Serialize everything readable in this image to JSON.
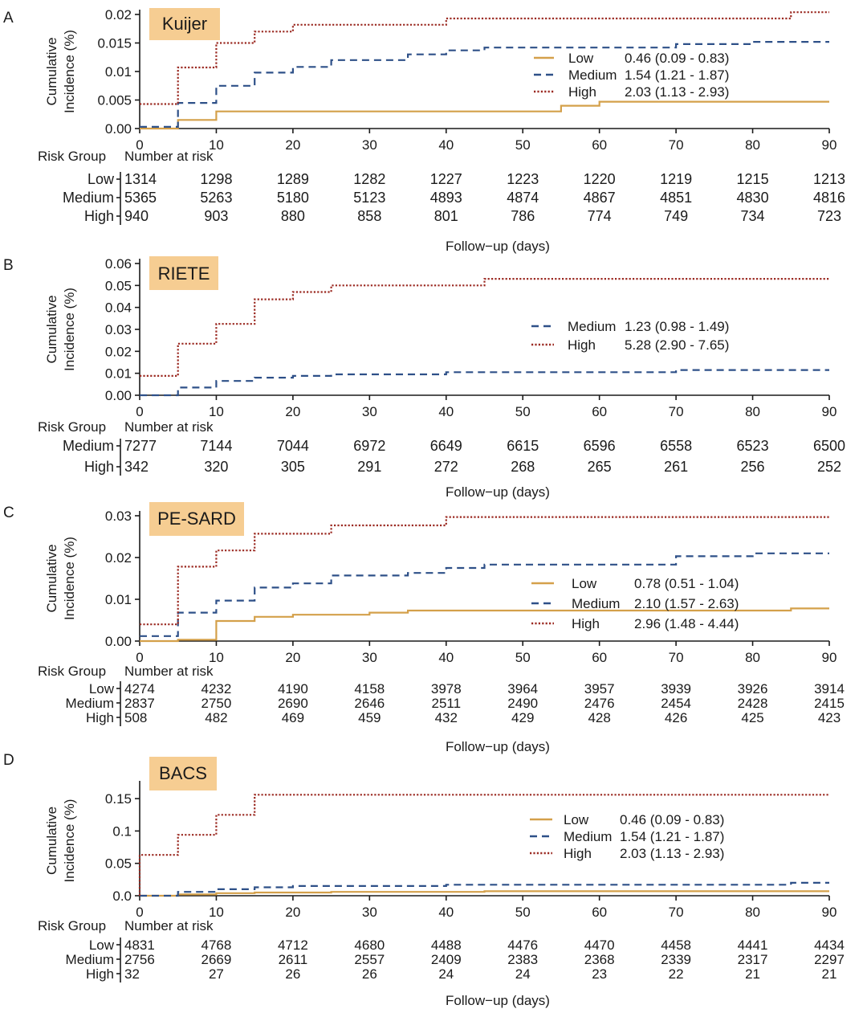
{
  "x_label": "Follow−up (days)",
  "risk_header": "Risk Group",
  "risk_subheader": "Number at risk",
  "colors": {
    "Low": "#d4a04a",
    "Medium": "#2e5088",
    "High": "#9b2a22"
  },
  "line_styles": {
    "Low": "solid",
    "Medium": "dashed",
    "High": "dotted"
  },
  "chart_data": [
    {
      "panel_letter": "A",
      "title": "Kuijer",
      "type": "line",
      "step": true,
      "x_ticks": [
        0,
        10,
        20,
        30,
        40,
        50,
        60,
        70,
        80,
        90
      ],
      "xlim": [
        0,
        90
      ],
      "ylim": [
        0,
        0.02
      ],
      "y_ticks": [
        "0.00",
        "0.005",
        "0.01",
        "0.015",
        "0.02"
      ],
      "y_tick_values": [
        0,
        0.005,
        0.01,
        0.015,
        0.02
      ],
      "ylabel": [
        "Cumulative",
        "Incidence (%)"
      ],
      "series": [
        {
          "name": "Low",
          "hr": "0.46 (0.09 - 0.83)",
          "points": [
            [
              0,
              0
            ],
            [
              5,
              0
            ],
            [
              5,
              0.0015
            ],
            [
              10,
              0.0015
            ],
            [
              10,
              0.003
            ],
            [
              55,
              0.003
            ],
            [
              55,
              0.004
            ],
            [
              60,
              0.004
            ],
            [
              60,
              0.0047
            ],
            [
              90,
              0.0047
            ]
          ]
        },
        {
          "name": "Medium",
          "hr": "1.54 (1.21 - 1.87)",
          "points": [
            [
              0,
              0.0003
            ],
            [
              5,
              0.0003
            ],
            [
              5,
              0.0045
            ],
            [
              10,
              0.0045
            ],
            [
              10,
              0.0075
            ],
            [
              15,
              0.0075
            ],
            [
              15,
              0.0098
            ],
            [
              20,
              0.0098
            ],
            [
              20,
              0.0108
            ],
            [
              25,
              0.0108
            ],
            [
              25,
              0.012
            ],
            [
              35,
              0.012
            ],
            [
              35,
              0.013
            ],
            [
              40,
              0.013
            ],
            [
              40,
              0.0137
            ],
            [
              45,
              0.0137
            ],
            [
              45,
              0.0142
            ],
            [
              70,
              0.0142
            ],
            [
              70,
              0.0148
            ],
            [
              80,
              0.0148
            ],
            [
              80,
              0.0152
            ],
            [
              90,
              0.0152
            ]
          ]
        },
        {
          "name": "High",
          "hr": "2.03 (1.13 - 2.93)",
          "points": [
            [
              0,
              0.0043
            ],
            [
              5,
              0.0043
            ],
            [
              5,
              0.0107
            ],
            [
              10,
              0.0107
            ],
            [
              10,
              0.015
            ],
            [
              15,
              0.015
            ],
            [
              15,
              0.017
            ],
            [
              20,
              0.017
            ],
            [
              20,
              0.0182
            ],
            [
              40,
              0.0182
            ],
            [
              40,
              0.0193
            ],
            [
              85,
              0.0193
            ],
            [
              85,
              0.0204
            ],
            [
              90,
              0.0204
            ]
          ]
        }
      ],
      "risk_table": {
        "Low": [
          "1314",
          "1298",
          "1289",
          "1282",
          "1227",
          "1223",
          "1220",
          "1219",
          "1215",
          "1213"
        ],
        "Medium": [
          "5365",
          "5263",
          "5180",
          "5123",
          "4893",
          "4874",
          "4867",
          "4851",
          "4830",
          "4816"
        ],
        "High": [
          "940",
          "903",
          "880",
          "858",
          "801",
          "786",
          "774",
          "749",
          "734",
          "723"
        ]
      }
    },
    {
      "panel_letter": "B",
      "title": "RIETE",
      "type": "line",
      "step": true,
      "x_ticks": [
        0,
        10,
        20,
        30,
        40,
        50,
        60,
        70,
        80,
        90
      ],
      "xlim": [
        0,
        90
      ],
      "ylim": [
        0,
        0.06
      ],
      "y_ticks": [
        "0.00",
        "0.01",
        "0.02",
        "0.03",
        "0.04",
        "0.05",
        "0.06"
      ],
      "y_tick_values": [
        0,
        0.01,
        0.02,
        0.03,
        0.04,
        0.05,
        0.06
      ],
      "ylabel": [
        "Cumulative",
        "Incidence (%)"
      ],
      "series": [
        {
          "name": "Medium",
          "hr": "1.23 (0.98 - 1.49)",
          "points": [
            [
              0,
              0
            ],
            [
              5,
              0
            ],
            [
              5,
              0.0035
            ],
            [
              10,
              0.0035
            ],
            [
              10,
              0.0065
            ],
            [
              15,
              0.0065
            ],
            [
              15,
              0.008
            ],
            [
              20,
              0.008
            ],
            [
              20,
              0.0088
            ],
            [
              25,
              0.0088
            ],
            [
              25,
              0.0095
            ],
            [
              40,
              0.0095
            ],
            [
              40,
              0.0105
            ],
            [
              70,
              0.0105
            ],
            [
              70,
              0.0115
            ],
            [
              90,
              0.0115
            ]
          ]
        },
        {
          "name": "High",
          "hr": "5.28 (2.90 - 7.65)",
          "points": [
            [
              0,
              0.0088
            ],
            [
              5,
              0.0088
            ],
            [
              5,
              0.0235
            ],
            [
              10,
              0.0235
            ],
            [
              10,
              0.0325
            ],
            [
              15,
              0.0325
            ],
            [
              15,
              0.0437
            ],
            [
              20,
              0.0437
            ],
            [
              20,
              0.047
            ],
            [
              25,
              0.047
            ],
            [
              25,
              0.05
            ],
            [
              45,
              0.05
            ],
            [
              45,
              0.053
            ],
            [
              90,
              0.053
            ]
          ]
        }
      ],
      "risk_table": {
        "Medium": [
          "7277",
          "7144",
          "7044",
          "6972",
          "6649",
          "6615",
          "6596",
          "6558",
          "6523",
          "6500"
        ],
        "High": [
          "342",
          "320",
          "305",
          "291",
          "272",
          "268",
          "265",
          "261",
          "256",
          "252"
        ]
      }
    },
    {
      "panel_letter": "C",
      "title": "PE-SARD",
      "type": "line",
      "step": true,
      "x_ticks": [
        0,
        10,
        20,
        30,
        40,
        50,
        60,
        70,
        80,
        90
      ],
      "xlim": [
        0,
        90
      ],
      "ylim": [
        0,
        0.03
      ],
      "y_ticks": [
        "0.00",
        "0.01",
        "0.02",
        "0.03"
      ],
      "y_tick_values": [
        0,
        0.01,
        0.02,
        0.03
      ],
      "ylabel": [
        "Cumulative",
        "Incidence (%)"
      ],
      "series": [
        {
          "name": "Low",
          "hr": "0.78 (0.51 - 1.04)",
          "points": [
            [
              0,
              0
            ],
            [
              5,
              0
            ],
            [
              5,
              0.0003
            ],
            [
              10,
              0.0003
            ],
            [
              10,
              0.0048
            ],
            [
              15,
              0.0048
            ],
            [
              15,
              0.0058
            ],
            [
              20,
              0.0058
            ],
            [
              20,
              0.0063
            ],
            [
              30,
              0.0063
            ],
            [
              30,
              0.0068
            ],
            [
              35,
              0.0068
            ],
            [
              35,
              0.0073
            ],
            [
              85,
              0.0073
            ],
            [
              85,
              0.0078
            ],
            [
              90,
              0.0078
            ]
          ]
        },
        {
          "name": "Medium",
          "hr": "2.10 (1.57 - 2.63)",
          "points": [
            [
              0,
              0.0012
            ],
            [
              5,
              0.0012
            ],
            [
              5,
              0.0068
            ],
            [
              10,
              0.0068
            ],
            [
              10,
              0.0097
            ],
            [
              15,
              0.0097
            ],
            [
              15,
              0.0128
            ],
            [
              20,
              0.0128
            ],
            [
              20,
              0.0138
            ],
            [
              25,
              0.0138
            ],
            [
              25,
              0.0157
            ],
            [
              35,
              0.0157
            ],
            [
              35,
              0.0163
            ],
            [
              40,
              0.0163
            ],
            [
              40,
              0.0175
            ],
            [
              45,
              0.0175
            ],
            [
              45,
              0.0183
            ],
            [
              70,
              0.0183
            ],
            [
              70,
              0.0203
            ],
            [
              80,
              0.0203
            ],
            [
              80,
              0.021
            ],
            [
              90,
              0.021
            ]
          ]
        },
        {
          "name": "High",
          "hr": "2.96 (1.48 - 4.44)",
          "points": [
            [
              0,
              0.004
            ],
            [
              5,
              0.004
            ],
            [
              5,
              0.0178
            ],
            [
              10,
              0.0178
            ],
            [
              10,
              0.0217
            ],
            [
              15,
              0.0217
            ],
            [
              15,
              0.0257
            ],
            [
              25,
              0.0257
            ],
            [
              25,
              0.0277
            ],
            [
              40,
              0.0277
            ],
            [
              40,
              0.0297
            ],
            [
              90,
              0.0297
            ]
          ]
        }
      ],
      "risk_table": {
        "Low": [
          "4274",
          "4232",
          "4190",
          "4158",
          "3978",
          "3964",
          "3957",
          "3939",
          "3926",
          "3914"
        ],
        "Medium": [
          "2837",
          "2750",
          "2690",
          "2646",
          "2511",
          "2490",
          "2476",
          "2454",
          "2428",
          "2415"
        ],
        "High": [
          "508",
          "482",
          "469",
          "459",
          "432",
          "429",
          "428",
          "426",
          "425",
          "423"
        ]
      }
    },
    {
      "panel_letter": "D",
      "title": "BACS",
      "type": "line",
      "step": true,
      "x_ticks": [
        0,
        10,
        20,
        30,
        40,
        50,
        60,
        70,
        80,
        90
      ],
      "xlim": [
        0,
        90
      ],
      "ylim": [
        0,
        0.17
      ],
      "y_ticks": [
        "0.0",
        "0.05",
        "0.1",
        "0.15"
      ],
      "y_tick_values": [
        0,
        0.05,
        0.1,
        0.15
      ],
      "ylabel": [
        "Cumulative",
        "Incidence (%)"
      ],
      "series": [
        {
          "name": "Low",
          "hr": "0.46 (0.09 - 0.83)",
          "points": [
            [
              0,
              0
            ],
            [
              5,
              0
            ],
            [
              5,
              0.002
            ],
            [
              10,
              0.002
            ],
            [
              10,
              0.004
            ],
            [
              15,
              0.004
            ],
            [
              15,
              0.005
            ],
            [
              25,
              0.005
            ],
            [
              25,
              0.006
            ],
            [
              45,
              0.006
            ],
            [
              45,
              0.007
            ],
            [
              90,
              0.007
            ]
          ]
        },
        {
          "name": "Medium",
          "hr": "1.54 (1.21 - 1.87)",
          "points": [
            [
              0,
              0
            ],
            [
              5,
              0
            ],
            [
              5,
              0.006
            ],
            [
              10,
              0.006
            ],
            [
              10,
              0.01
            ],
            [
              15,
              0.01
            ],
            [
              15,
              0.013
            ],
            [
              20,
              0.013
            ],
            [
              20,
              0.015
            ],
            [
              40,
              0.015
            ],
            [
              40,
              0.017
            ],
            [
              85,
              0.017
            ],
            [
              85,
              0.02
            ],
            [
              90,
              0.02
            ]
          ]
        },
        {
          "name": "High",
          "hr": "2.03 (1.13 - 2.93)",
          "points": [
            [
              0,
              0
            ],
            [
              0,
              0.063
            ],
            [
              5,
              0.063
            ],
            [
              5,
              0.094
            ],
            [
              10,
              0.094
            ],
            [
              10,
              0.125
            ],
            [
              15,
              0.125
            ],
            [
              15,
              0.156
            ],
            [
              90,
              0.156
            ]
          ]
        }
      ],
      "risk_table": {
        "Low": [
          "4831",
          "4768",
          "4712",
          "4680",
          "4488",
          "4476",
          "4470",
          "4458",
          "4441",
          "4434"
        ],
        "Medium": [
          "2756",
          "2669",
          "2611",
          "2557",
          "2409",
          "2383",
          "2368",
          "2339",
          "2317",
          "2297"
        ],
        "High": [
          "32",
          "27",
          "26",
          "26",
          "24",
          "24",
          "23",
          "22",
          "21",
          "21"
        ]
      }
    }
  ]
}
